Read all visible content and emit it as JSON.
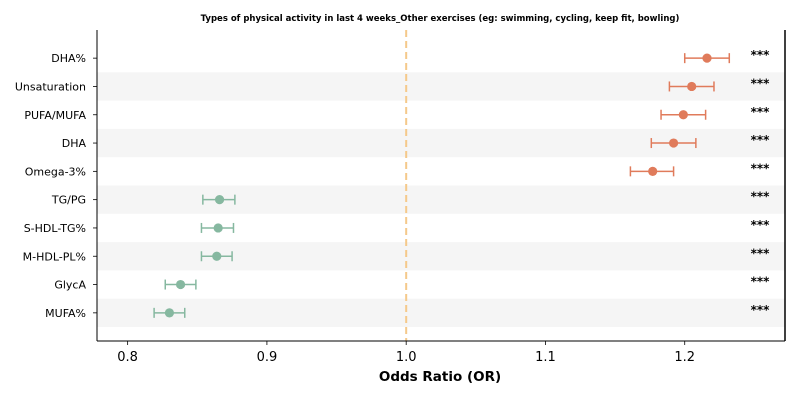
{
  "chart_data": {
    "type": "forest",
    "title": "Types of physical activity in last 4 weeks_Other exercises (eg: swimming, cycling, keep fit, bowling)",
    "xlabel": "Odds Ratio (OR)",
    "xlim": [
      0.778,
      1.272
    ],
    "xticks": [
      0.8,
      0.9,
      1.0,
      1.1,
      1.2
    ],
    "xtick_labels": [
      "0.8",
      "0.9",
      "1.0",
      "1.1",
      "1.2"
    ],
    "reference_line": 1.0,
    "reference_color": "#f5c98a",
    "colors": {
      "up": "#e07b5b",
      "down": "#86b8a0",
      "band": "#f5f5f5"
    },
    "rows": [
      {
        "label": "DHA%",
        "or": 1.216,
        "lo": 1.2,
        "hi": 1.232,
        "sig": "***",
        "dir": "up"
      },
      {
        "label": "Unsaturation",
        "or": 1.205,
        "lo": 1.189,
        "hi": 1.221,
        "sig": "***",
        "dir": "up"
      },
      {
        "label": "PUFA/MUFA",
        "or": 1.199,
        "lo": 1.183,
        "hi": 1.215,
        "sig": "***",
        "dir": "up"
      },
      {
        "label": "DHA",
        "or": 1.192,
        "lo": 1.176,
        "hi": 1.208,
        "sig": "***",
        "dir": "up"
      },
      {
        "label": "Omega-3%",
        "or": 1.177,
        "lo": 1.161,
        "hi": 1.192,
        "sig": "***",
        "dir": "up"
      },
      {
        "label": "TG/PG",
        "or": 0.866,
        "lo": 0.854,
        "hi": 0.877,
        "sig": "***",
        "dir": "down"
      },
      {
        "label": "S-HDL-TG%",
        "or": 0.865,
        "lo": 0.853,
        "hi": 0.876,
        "sig": "***",
        "dir": "down"
      },
      {
        "label": "M-HDL-PL%",
        "or": 0.864,
        "lo": 0.853,
        "hi": 0.875,
        "sig": "***",
        "dir": "down"
      },
      {
        "label": "GlycA",
        "or": 0.838,
        "lo": 0.827,
        "hi": 0.849,
        "sig": "***",
        "dir": "down"
      },
      {
        "label": "MUFA%",
        "or": 0.83,
        "lo": 0.819,
        "hi": 0.841,
        "sig": "***",
        "dir": "down"
      }
    ]
  }
}
